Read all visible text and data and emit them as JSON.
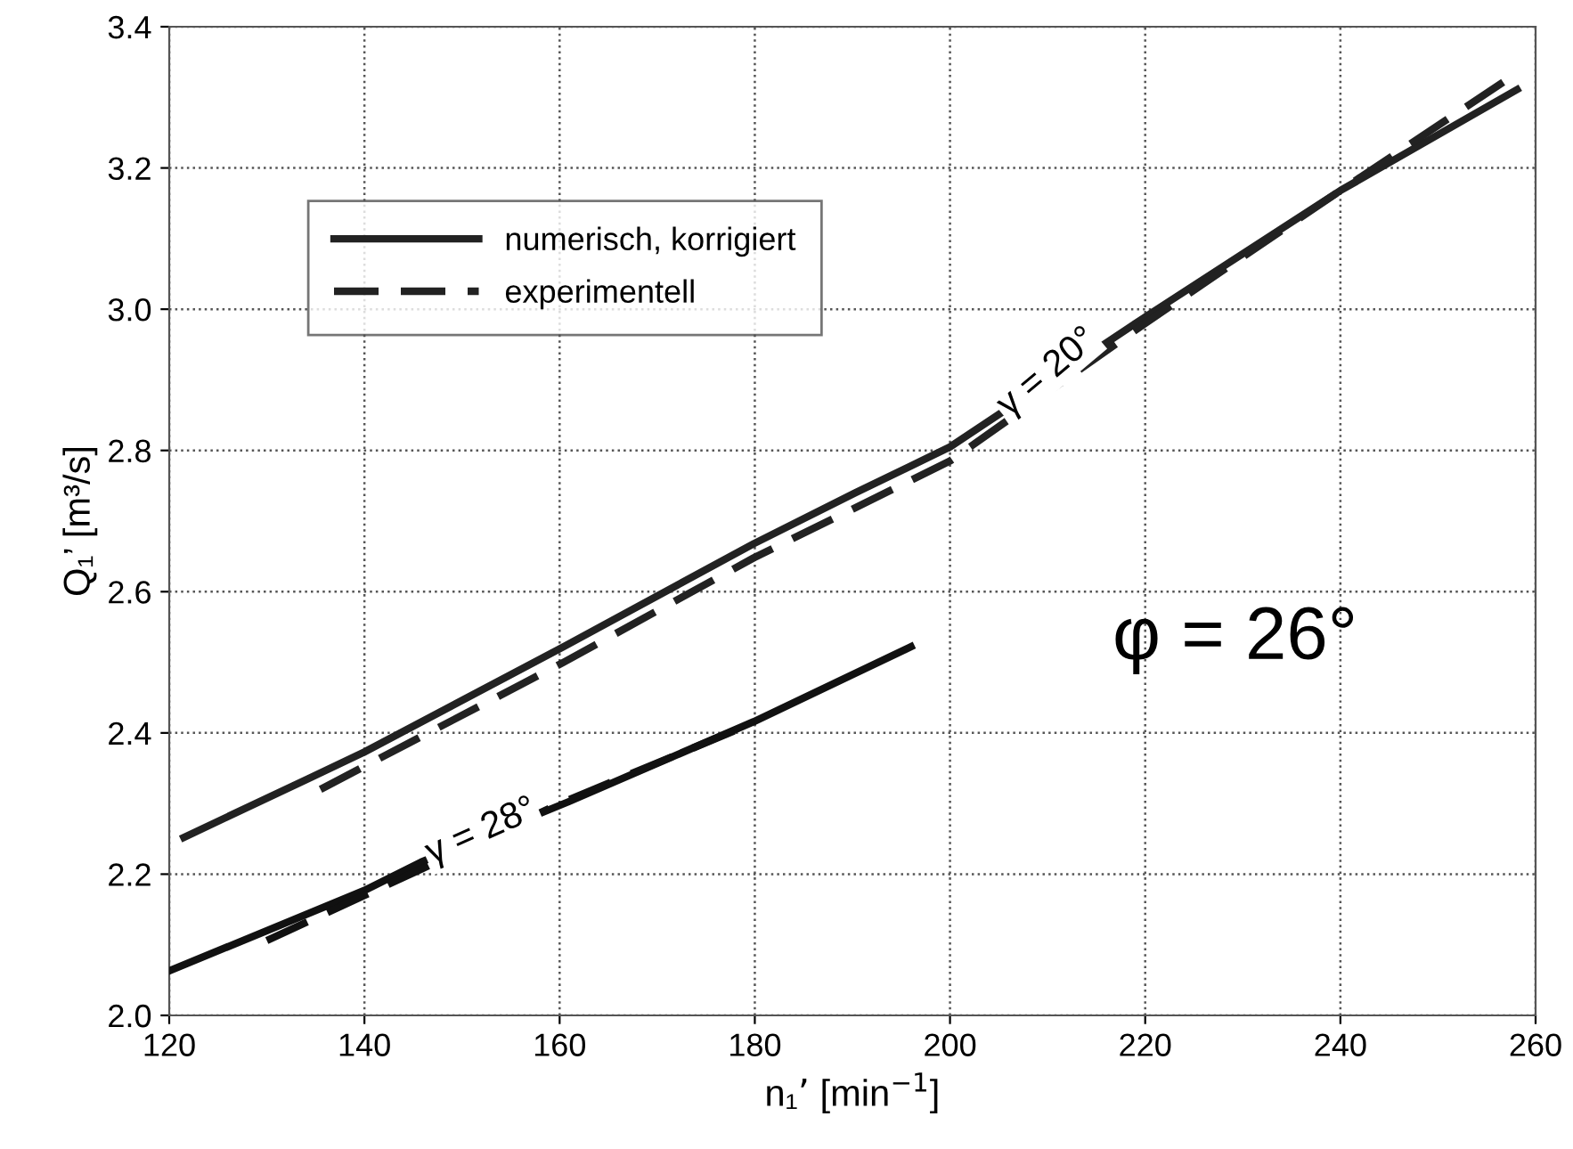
{
  "chart_data": {
    "type": "line",
    "xlabel": "n₁’ [min$^{−1}$]",
    "ylabel": "Q₁’ [m³/s]",
    "xlim": [
      120,
      260
    ],
    "xticks": [
      120,
      140,
      160,
      180,
      200,
      220,
      240,
      260
    ],
    "ylim": [
      2.0,
      3.4
    ],
    "yticks": [
      {
        "value": 2.0,
        "label": "2.0"
      },
      {
        "value": 2.2,
        "label": "2.2"
      },
      {
        "value": 2.4,
        "label": "2.4"
      },
      {
        "value": 2.6,
        "label": "2.6"
      },
      {
        "value": 2.8,
        "label": "2.8"
      },
      {
        "value": 3.0,
        "label": "3.0"
      },
      {
        "value": 3.2,
        "label": "3.2"
      },
      {
        "value": 3.4,
        "label": "3.4"
      }
    ],
    "grid": true,
    "legend": "top left",
    "marker": "none",
    "series": [
      {
        "name": "numerisch, korrigiert",
        "color": "#222222",
        "line_style": "solid",
        "x": [
          121.5,
          134.2,
          140,
          160.4,
          179.9,
          190.3,
          200,
          220,
          240,
          258.1
        ],
        "values": [
          2.252,
          2.335,
          2.373,
          2.522,
          2.668,
          2.74,
          2.805,
          2.989,
          3.168,
          3.311
        ]
      },
      {
        "name": "experimentell",
        "color": "#222222",
        "line_style": "dashed",
        "x": [
          135.5,
          144.6,
          160.4,
          179.9,
          200,
          220,
          240,
          257.6
        ],
        "values": [
          2.32,
          2.386,
          2.5,
          2.648,
          2.785,
          2.98,
          3.168,
          3.33
        ]
      },
      {
        "color": "#111111",
        "line_style": "solid",
        "x": [
          120,
          140,
          145.8,
          161,
          179.9,
          196
        ],
        "values": [
          2.063,
          2.177,
          2.217,
          2.303,
          2.416,
          2.522
        ]
      },
      {
        "color": "#111111",
        "line_style": "dashed",
        "x": [
          130,
          145.8,
          160,
          180
        ],
        "values": [
          2.106,
          2.207,
          2.3,
          2.415
        ]
      }
    ],
    "annotations": [
      {
        "text": "γ = 28°",
        "x": 152,
        "y": 2.26
      },
      {
        "text": "γ = 20°",
        "x": 210,
        "y": 2.91
      },
      "φ = 26°"
    ]
  }
}
